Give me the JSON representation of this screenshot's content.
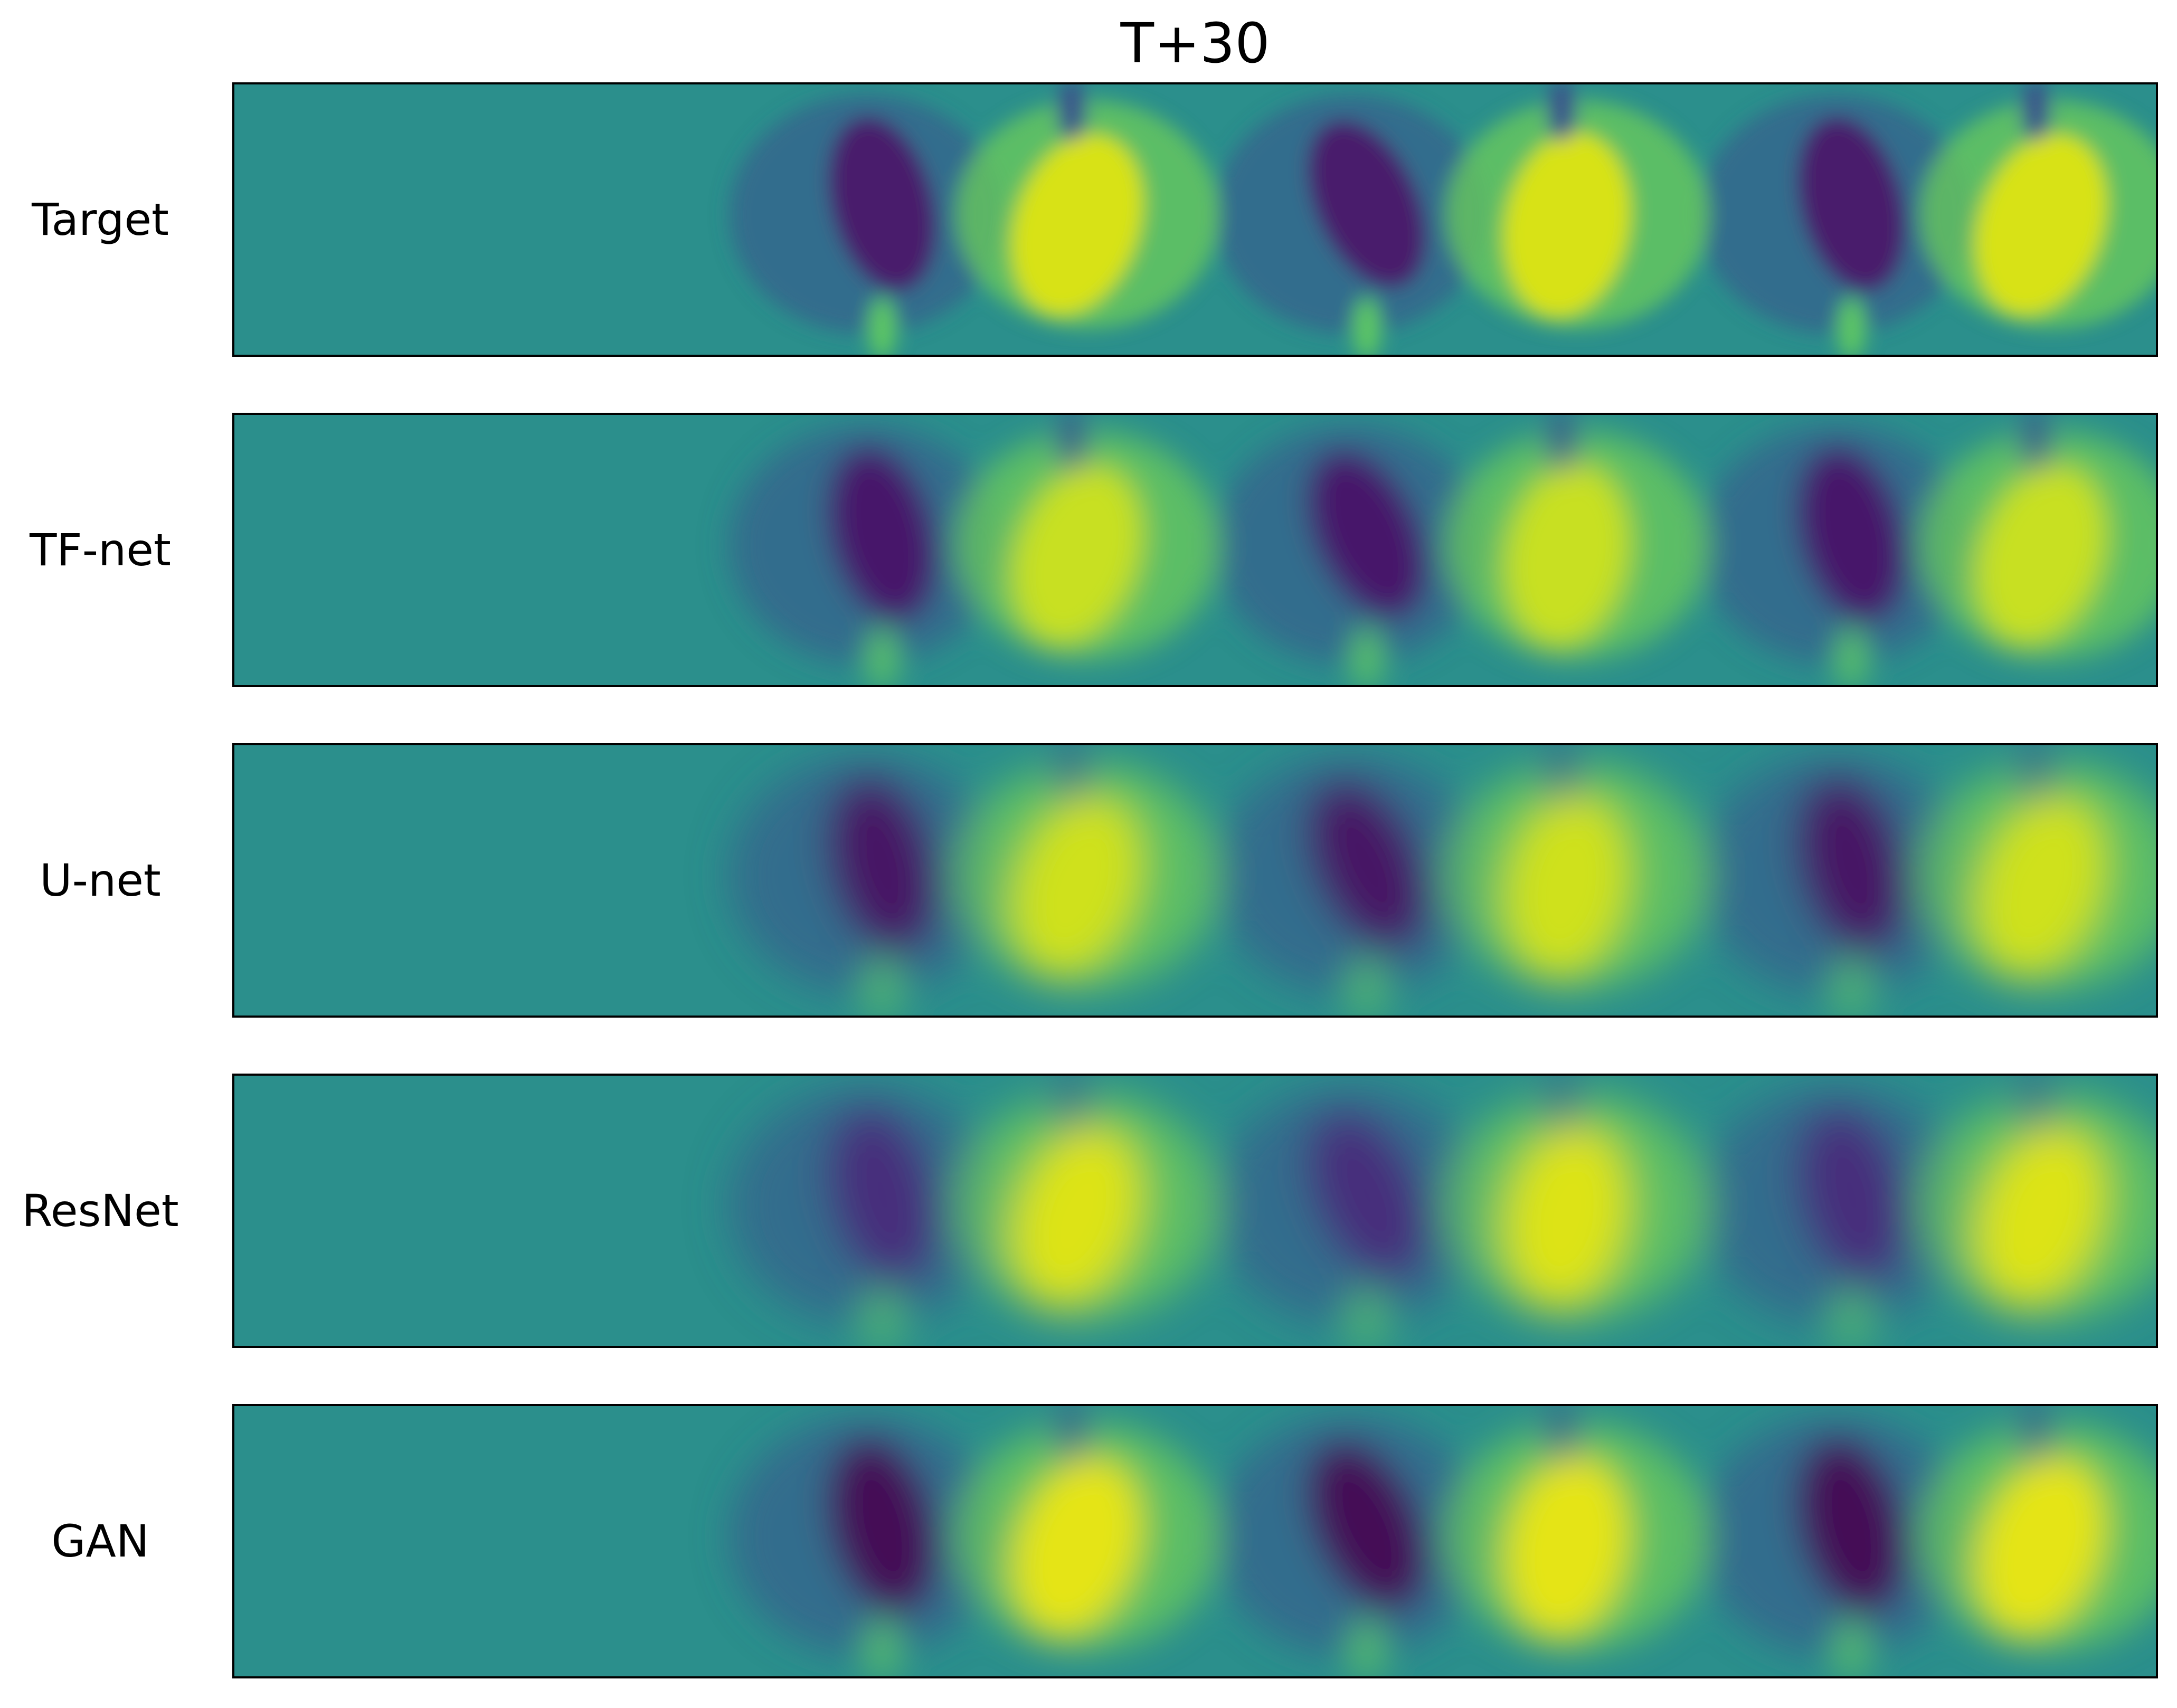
{
  "figure": {
    "title": "T+30",
    "colormap": "viridis",
    "rows": [
      {
        "label": "Target"
      },
      {
        "label": "TF-net"
      },
      {
        "label": "U-net"
      },
      {
        "label": "ResNet"
      },
      {
        "label": "GAN"
      }
    ]
  }
}
